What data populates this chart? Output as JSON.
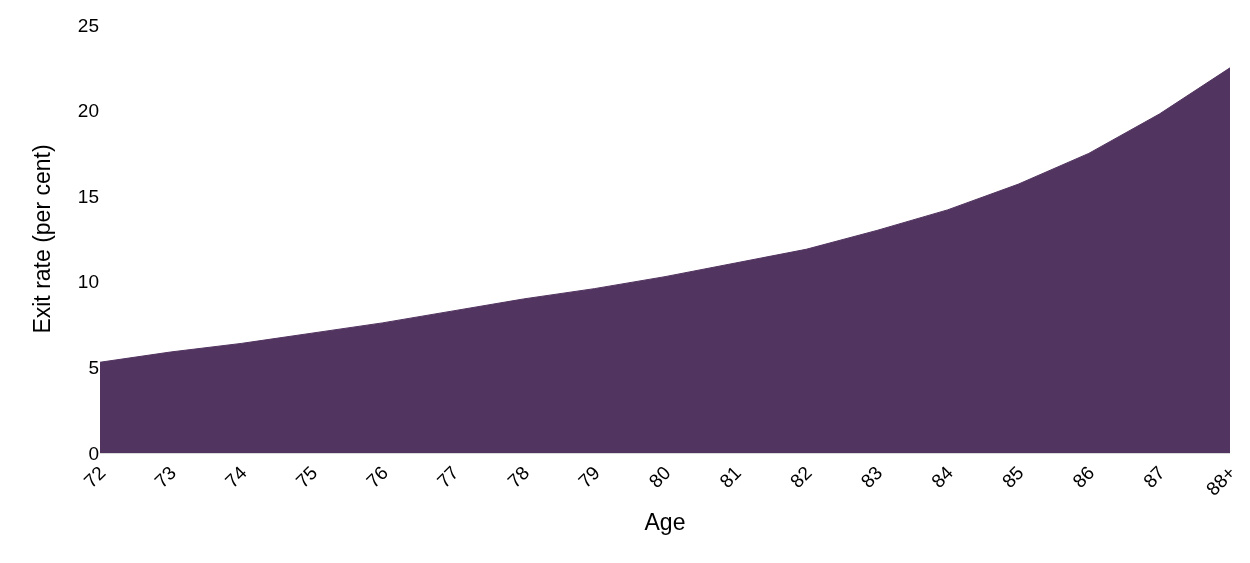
{
  "chart_data": {
    "type": "area",
    "xlabel": "Age",
    "ylabel": "Exit rate (per cent)",
    "categories": [
      "72",
      "73",
      "74",
      "75",
      "76",
      "77",
      "78",
      "79",
      "80",
      "81",
      "82",
      "83",
      "84",
      "85",
      "86",
      "87",
      "88+"
    ],
    "series": [
      {
        "color": "#523460",
        "values": [
          5.3,
          5.9,
          6.4,
          7.0,
          7.6,
          8.3,
          9.0,
          9.6,
          10.3,
          11.1,
          11.9,
          13.0,
          14.2,
          15.7,
          17.5,
          19.8,
          22.5
        ]
      }
    ],
    "ylim": [
      0,
      25
    ],
    "yticks": [
      0,
      5,
      10,
      15,
      20,
      25
    ]
  }
}
